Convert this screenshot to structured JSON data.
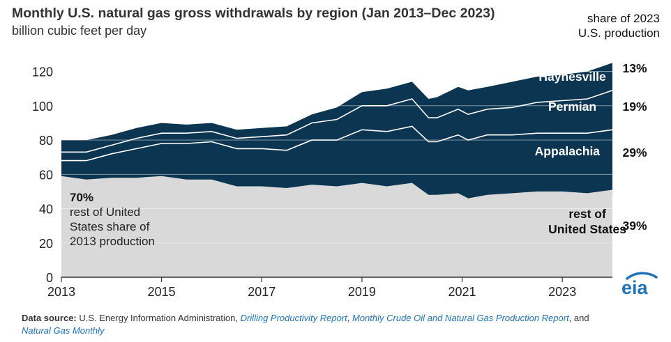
{
  "chart_data": {
    "type": "area",
    "title": "Monthly U.S. natural gas gross withdrawals by region  (Jan 2013–Dec 2023)",
    "subtitle": "billion cubic feet per day",
    "share_heading": "share of 2023 U.S. production",
    "ylim": [
      0,
      130
    ],
    "yticks": [
      0,
      20,
      40,
      60,
      80,
      100,
      120
    ],
    "xlim": [
      2013,
      2024
    ],
    "xticks": [
      2013,
      2015,
      2017,
      2019,
      2021,
      2023
    ],
    "grid": true,
    "stacked": true,
    "x": [
      2013.0,
      2013.5,
      2014.0,
      2014.5,
      2015.0,
      2015.5,
      2016.0,
      2016.5,
      2017.0,
      2017.5,
      2018.0,
      2018.5,
      2019.0,
      2019.5,
      2020.0,
      2020.33,
      2020.5,
      2020.92,
      2021.12,
      2021.5,
      2022.0,
      2022.5,
      2023.0,
      2023.5,
      2024.0
    ],
    "series": [
      {
        "name": "rest of United States",
        "label": "rest of\nUnited States",
        "share": "39%",
        "color": "#d9d9d9",
        "values": [
          59,
          57,
          58,
          58,
          59,
          57,
          57,
          53,
          53,
          52,
          54,
          53,
          55,
          53,
          55,
          48,
          48,
          49,
          46,
          48,
          49,
          50,
          50,
          49,
          51
        ]
      },
      {
        "name": "Appalachia",
        "label": "Appalachia",
        "share": "29%",
        "color": "#0b3550",
        "values": [
          9,
          11,
          14,
          17,
          19,
          21,
          22,
          22,
          22,
          22,
          26,
          27,
          31,
          32,
          33,
          31,
          31,
          34,
          34,
          35,
          34,
          34,
          34,
          35,
          35
        ]
      },
      {
        "name": "Permian",
        "label": "Permian",
        "share": "19%",
        "color": "#0b3550",
        "values": [
          5,
          5,
          5,
          6,
          6,
          6,
          6,
          6,
          7,
          9,
          10,
          12,
          14,
          15,
          16,
          14,
          14,
          15,
          15,
          15,
          16,
          18,
          19,
          20,
          23
        ]
      },
      {
        "name": "Haynesville",
        "label": "Haynesville",
        "share": "13%",
        "color": "#0b3550",
        "values": [
          7,
          7,
          6,
          6,
          6,
          5,
          5,
          5,
          5,
          5,
          5,
          7,
          8,
          10,
          10,
          11,
          12,
          13,
          14,
          13,
          15,
          15,
          15,
          16,
          16
        ]
      }
    ],
    "annotations": {
      "pct": "70%",
      "lines": [
        "rest of United",
        "States share of",
        "2013 production"
      ]
    }
  },
  "source": {
    "label": "Data source:",
    "text1": " U.S. Energy Information Administration, ",
    "link1": "Drilling Productivity Report",
    "sep1": ", ",
    "link2": "Monthly Crude Oil and Natural Gas Production Report",
    "sep2": ", and",
    "link3": "Natural Gas Monthly"
  },
  "logo": {
    "text": "eia",
    "color": "#1f73b7"
  }
}
